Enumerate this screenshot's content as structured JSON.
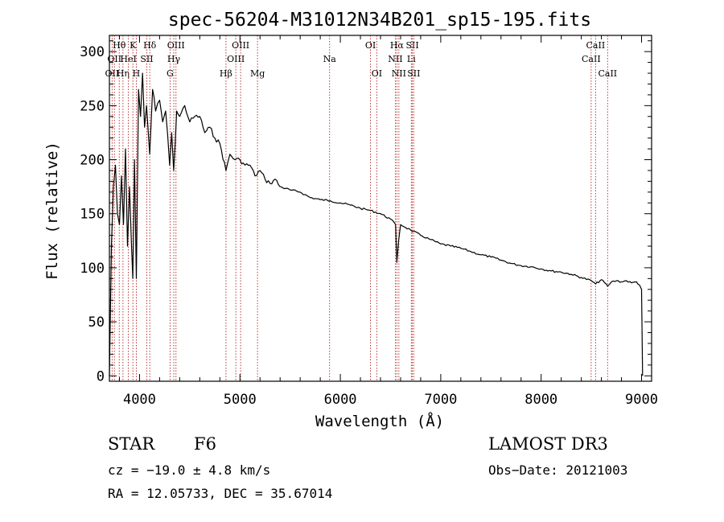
{
  "chart_data": {
    "type": "line",
    "title": "spec-56204-M31012N34B201_sp15-195.fits",
    "xlabel": "Wavelength (Å)",
    "ylabel": "Flux (relative)",
    "xlim": [
      3700,
      9100
    ],
    "ylim": [
      -5,
      315
    ],
    "xticks": [
      4000,
      5000,
      6000,
      7000,
      8000,
      9000
    ],
    "yticks": [
      0,
      50,
      100,
      150,
      200,
      250,
      300
    ],
    "line_color": "#000000",
    "marker_color": "#b22222",
    "series": [
      {
        "name": "flux",
        "x": [
          3700,
          3720,
          3740,
          3760,
          3780,
          3800,
          3820,
          3840,
          3860,
          3880,
          3900,
          3920,
          3933,
          3950,
          3968,
          3990,
          4010,
          4030,
          4050,
          4070,
          4101,
          4130,
          4160,
          4200,
          4230,
          4260,
          4300,
          4320,
          4340,
          4370,
          4400,
          4450,
          4500,
          4550,
          4600,
          4650,
          4700,
          4750,
          4800,
          4861,
          4900,
          4950,
          5000,
          5050,
          5100,
          5150,
          5200,
          5250,
          5300,
          5350,
          5400,
          5500,
          5600,
          5700,
          5800,
          5900,
          6000,
          6100,
          6200,
          6300,
          6400,
          6500,
          6550,
          6563,
          6580,
          6600,
          6700,
          6800,
          6900,
          7000,
          7100,
          7200,
          7300,
          7400,
          7500,
          7600,
          7700,
          7800,
          7900,
          8000,
          8100,
          8200,
          8300,
          8400,
          8500,
          8542,
          8600,
          8662,
          8700,
          8750,
          8800,
          8850,
          8900,
          8950,
          8980,
          9000,
          9010
        ],
        "y": [
          0,
          120,
          175,
          195,
          150,
          140,
          185,
          140,
          210,
          120,
          175,
          120,
          90,
          200,
          90,
          265,
          240,
          280,
          230,
          250,
          205,
          265,
          245,
          255,
          235,
          245,
          195,
          225,
          190,
          245,
          240,
          250,
          235,
          240,
          240,
          225,
          230,
          220,
          215,
          190,
          205,
          200,
          200,
          195,
          195,
          185,
          190,
          182,
          178,
          182,
          175,
          172,
          170,
          165,
          163,
          162,
          160,
          158,
          155,
          153,
          150,
          145,
          140,
          105,
          125,
          140,
          135,
          130,
          126,
          122,
          120,
          118,
          115,
          112,
          110,
          107,
          104,
          102,
          101,
          99,
          97,
          96,
          94,
          91,
          88,
          85,
          89,
          83,
          87,
          88,
          87,
          88,
          86,
          87,
          84,
          80,
          0
        ]
      }
    ],
    "line_markers": [
      {
        "wl": 3727,
        "label": "OII",
        "row": 2
      },
      {
        "wl": 3750,
        "label": "OII",
        "row": 1
      },
      {
        "wl": 3798,
        "label": "Hθ",
        "row": 0
      },
      {
        "wl": 3835,
        "label": "Hη",
        "row": 2
      },
      {
        "wl": 3889,
        "label": "HeI",
        "row": 1
      },
      {
        "wl": 3934,
        "label": "K",
        "row": 0
      },
      {
        "wl": 3968,
        "label": "H",
        "row": 2
      },
      {
        "wl": 4072,
        "label": "SII",
        "row": 1
      },
      {
        "wl": 4102,
        "label": "Hδ",
        "row": 0
      },
      {
        "wl": 4304,
        "label": "G",
        "row": 2
      },
      {
        "wl": 4341,
        "label": "Hγ",
        "row": 1
      },
      {
        "wl": 4363,
        "label": "OIII",
        "row": 0
      },
      {
        "wl": 4861,
        "label": "Hβ",
        "row": 2
      },
      {
        "wl": 4959,
        "label": "OIII",
        "row": 1
      },
      {
        "wl": 5007,
        "label": "OIII",
        "row": 0
      },
      {
        "wl": 5175,
        "label": "Mg",
        "row": 2
      },
      {
        "wl": 5893,
        "label": "Na",
        "row": 1
      },
      {
        "wl": 6300,
        "label": "OI",
        "row": 0
      },
      {
        "wl": 6363,
        "label": "OI",
        "row": 2
      },
      {
        "wl": 6548,
        "label": "NII",
        "row": 1
      },
      {
        "wl": 6563,
        "label": "Hα",
        "row": 0
      },
      {
        "wl": 6583,
        "label": "NII",
        "row": 2
      },
      {
        "wl": 6707,
        "label": "Li",
        "row": 1
      },
      {
        "wl": 6717,
        "label": "SII",
        "row": 0
      },
      {
        "wl": 6731,
        "label": "SII",
        "row": 2
      },
      {
        "wl": 8498,
        "label": "CaII",
        "row": 1
      },
      {
        "wl": 8542,
        "label": "CaII",
        "row": 0
      },
      {
        "wl": 8662,
        "label": "CaII",
        "row": 2
      }
    ]
  },
  "info": {
    "object_class": "STAR",
    "subclass": "F6",
    "survey": "LAMOST DR3",
    "cz": "cz = −19.0 ± 4.8 km/s",
    "obs_date": "Obs−Date: 20121003",
    "coords": "RA =  12.05733, DEC =  35.67014"
  }
}
